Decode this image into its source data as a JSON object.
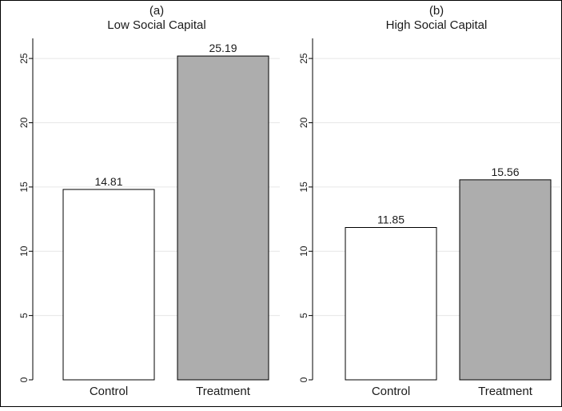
{
  "chart_data": [
    {
      "type": "bar",
      "title": "(a)",
      "subtitle": "Low Social Capital",
      "categories": [
        "Control",
        "Treatment"
      ],
      "values": [
        14.81,
        25.19
      ],
      "value_labels": [
        "14.81",
        "25.19"
      ],
      "bar_colors": [
        "#ffffff",
        "#adadad"
      ],
      "yticks": [
        "0",
        "5",
        "10",
        "15",
        "20",
        "25"
      ],
      "ylim": [
        0,
        26.5
      ],
      "grid": true
    },
    {
      "type": "bar",
      "title": "(b)",
      "subtitle": "High Social Capital",
      "categories": [
        "Control",
        "Treatment"
      ],
      "values": [
        11.85,
        15.56
      ],
      "value_labels": [
        "11.85",
        "15.56"
      ],
      "bar_colors": [
        "#ffffff",
        "#adadad"
      ],
      "yticks": [
        "0",
        "5",
        "10",
        "15",
        "20",
        "25"
      ],
      "ylim": [
        0,
        26.5
      ],
      "grid": true
    }
  ],
  "colors": {
    "grid": "#e6e6e6",
    "axis": "#000000",
    "bar_edge": "#000000"
  }
}
